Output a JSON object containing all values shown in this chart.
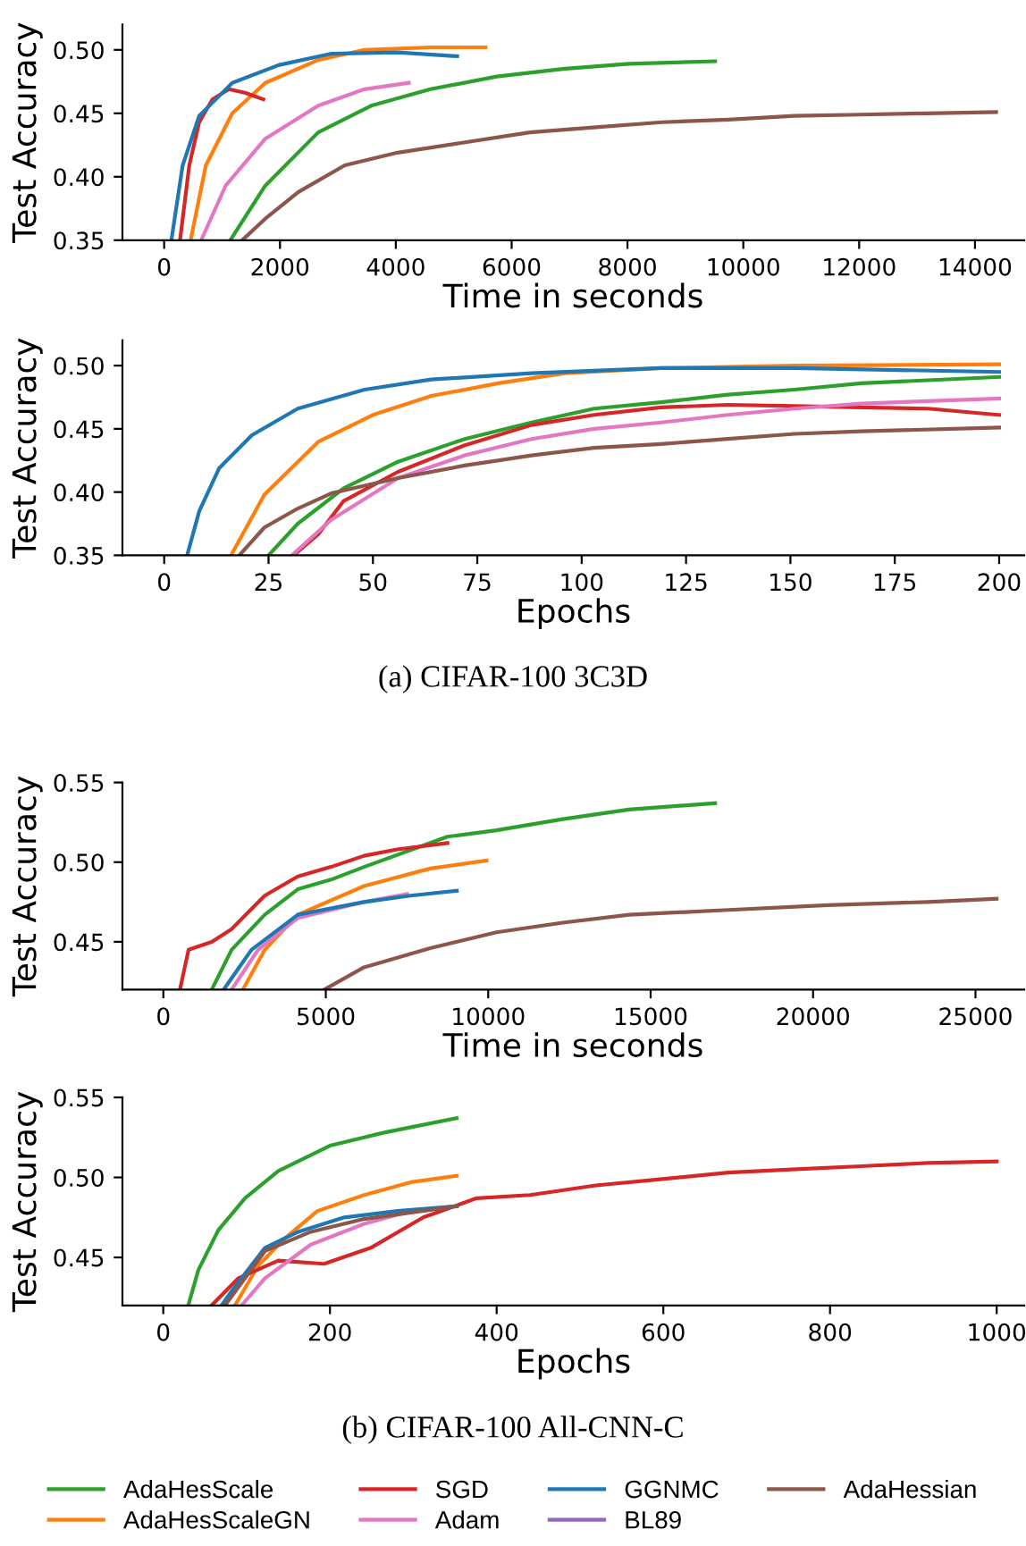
{
  "chart_data": [
    {
      "type": "line",
      "xlabel": "Time in seconds",
      "ylabel": "Test Accuracy",
      "xlim": [
        -720,
        14850
      ],
      "ylim": [
        0.35,
        0.52
      ],
      "xticks": [
        0,
        2000,
        4000,
        6000,
        8000,
        10000,
        12000,
        14000
      ],
      "yticks": [
        {
          "value": 0.35,
          "label": "0.35"
        },
        {
          "value": 0.4,
          "label": "0.40"
        },
        {
          "value": 0.45,
          "label": "0.45"
        },
        {
          "value": 0.5,
          "label": "0.50"
        }
      ],
      "grid": false,
      "series": [
        {
          "color": "#2ca02c",
          "x": [
            1142,
            1747,
            2660,
            3574,
            4600,
            5744,
            6886,
            8028,
            9513
          ],
          "values": [
            0.35,
            0.393,
            0.435,
            0.456,
            0.469,
            0.479,
            0.485,
            0.489,
            0.491
          ]
        },
        {
          "color": "#ff7f0e",
          "x": [
            457,
            720,
            1176,
            1747,
            2660,
            3460,
            4600,
            5550
          ],
          "values": [
            0.35,
            0.409,
            0.45,
            0.474,
            0.492,
            0.5,
            0.502,
            0.502
          ]
        },
        {
          "color": "#d62728",
          "x": [
            274,
            434,
            605,
            833,
            1119,
            1405,
            1713
          ],
          "values": [
            0.35,
            0.409,
            0.443,
            0.461,
            0.469,
            0.466,
            0.461
          ]
        },
        {
          "color": "#e377c2",
          "x": [
            640,
            1062,
            1747,
            2660,
            3460,
            4225
          ],
          "values": [
            0.35,
            0.393,
            0.43,
            0.456,
            0.469,
            0.474
          ]
        },
        {
          "color": "#1f77b4",
          "x": [
            125,
            320,
            605,
            1176,
            1976,
            2890,
            4030,
            5060
          ],
          "values": [
            0.35,
            0.409,
            0.448,
            0.474,
            0.488,
            0.497,
            0.498,
            0.495
          ]
        },
        {
          "color": "#8c564b",
          "x": [
            1348,
            1747,
            2318,
            3118,
            4031,
            5173,
            6315,
            7457,
            8600,
            9741,
            10883,
            12025,
            13167,
            14366
          ],
          "values": [
            0.35,
            0.367,
            0.388,
            0.409,
            0.419,
            0.427,
            0.435,
            0.439,
            0.443,
            0.445,
            0.448,
            0.449,
            0.45,
            0.451
          ]
        }
      ]
    },
    {
      "type": "line",
      "xlabel": "Epochs",
      "ylabel": "Test Accuracy",
      "xlim": [
        -10,
        206
      ],
      "ylim": [
        0.35,
        0.52
      ],
      "xticks": [
        0,
        25,
        50,
        75,
        100,
        125,
        150,
        175,
        200
      ],
      "yticks": [
        {
          "value": 0.35,
          "label": "0.35"
        },
        {
          "value": 0.4,
          "label": "0.40"
        },
        {
          "value": 0.45,
          "label": "0.45"
        },
        {
          "value": 0.5,
          "label": "0.50"
        }
      ],
      "grid": false,
      "annotations": [
        "(a) CIFAR-100 3C3D"
      ],
      "series": [
        {
          "color": "#2ca02c",
          "x": [
            25,
            32,
            43,
            56,
            72,
            88,
            103,
            119,
            135,
            151,
            167,
            200
          ],
          "values": [
            0.35,
            0.375,
            0.403,
            0.424,
            0.442,
            0.455,
            0.466,
            0.471,
            0.477,
            0.481,
            0.486,
            0.491
          ]
        },
        {
          "color": "#ff7f0e",
          "x": [
            16,
            24,
            37,
            50,
            64,
            80,
            96,
            119,
            151,
            200
          ],
          "values": [
            0.35,
            0.398,
            0.44,
            0.461,
            0.476,
            0.486,
            0.494,
            0.498,
            0.5,
            0.501
          ]
        },
        {
          "color": "#d62728",
          "x": [
            31,
            37,
            43,
            56,
            72,
            88,
            103,
            119,
            135,
            151,
            167,
            183,
            200
          ],
          "values": [
            0.35,
            0.367,
            0.393,
            0.416,
            0.437,
            0.453,
            0.461,
            0.467,
            0.469,
            0.468,
            0.467,
            0.466,
            0.461
          ]
        },
        {
          "color": "#e377c2",
          "x": [
            30.6,
            40,
            56,
            72,
            88,
            103,
            119,
            135,
            151,
            167,
            200
          ],
          "values": [
            0.35,
            0.378,
            0.411,
            0.429,
            0.442,
            0.45,
            0.455,
            0.461,
            0.466,
            0.47,
            0.474
          ]
        },
        {
          "color": "#1f77b4",
          "x": [
            5.5,
            8.4,
            13.2,
            21,
            32,
            48,
            64,
            88,
            119,
            151,
            200
          ],
          "values": [
            0.35,
            0.385,
            0.419,
            0.445,
            0.466,
            0.481,
            0.489,
            0.494,
            0.498,
            0.498,
            0.495
          ]
        },
        {
          "color": "#8c564b",
          "x": [
            18,
            24,
            32,
            40,
            56,
            72,
            88,
            103,
            119,
            135,
            151,
            167,
            200
          ],
          "values": [
            0.35,
            0.372,
            0.387,
            0.399,
            0.411,
            0.421,
            0.429,
            0.435,
            0.438,
            0.442,
            0.446,
            0.448,
            0.451
          ]
        }
      ]
    },
    {
      "type": "line",
      "xlabel": "Time in seconds",
      "ylabel": "Test Accuracy",
      "xlim": [
        -1260,
        26500
      ],
      "ylim": [
        0.42,
        0.55
      ],
      "xticks": [
        0,
        5000,
        10000,
        15000,
        20000,
        25000
      ],
      "yticks": [
        {
          "value": 0.45,
          "label": "0.45"
        },
        {
          "value": 0.5,
          "label": "0.50"
        },
        {
          "value": 0.55,
          "label": "0.55"
        }
      ],
      "grid": false,
      "series": [
        {
          "color": "#2ca02c",
          "x": [
            1489,
            2100,
            3120,
            4139,
            5159,
            6178,
            8747,
            10256,
            12295,
            14334,
            16985
          ],
          "values": [
            0.42,
            0.445,
            0.467,
            0.483,
            0.489,
            0.497,
            0.516,
            0.52,
            0.527,
            0.533,
            0.537
          ]
        },
        {
          "color": "#ff7f0e",
          "x": [
            2447,
            3120,
            4139,
            6178,
            8217,
            9950
          ],
          "values": [
            0.42,
            0.445,
            0.467,
            0.485,
            0.496,
            0.501
          ]
        },
        {
          "color": "#d62728",
          "x": [
            510,
            775,
            1489,
            2100,
            3120,
            4139,
            5159,
            6178,
            7198,
            8747
          ],
          "values": [
            0.42,
            0.445,
            0.45,
            0.458,
            0.479,
            0.491,
            0.497,
            0.504,
            0.508,
            0.512
          ]
        },
        {
          "color": "#e377c2",
          "x": [
            2100,
            2916,
            4139,
            6178,
            7504
          ],
          "values": [
            0.42,
            0.445,
            0.465,
            0.475,
            0.48
          ]
        },
        {
          "color": "#1f77b4",
          "x": [
            1855,
            2712,
            4139,
            6178,
            7606,
            9033
          ],
          "values": [
            0.42,
            0.445,
            0.467,
            0.475,
            0.479,
            0.482
          ]
        },
        {
          "color": "#8c564b",
          "x": [
            4955,
            6178,
            8217,
            10256,
            12295,
            14334,
            17393,
            20451,
            23510,
            25651
          ],
          "values": [
            0.42,
            0.434,
            0.446,
            0.456,
            0.462,
            0.467,
            0.47,
            0.473,
            0.475,
            0.477
          ]
        }
      ]
    },
    {
      "type": "line",
      "xlabel": "Epochs",
      "ylabel": "Test Accuracy",
      "xlim": [
        -49,
        1033
      ],
      "ylim": [
        0.42,
        0.55
      ],
      "xticks": [
        0,
        200,
        400,
        600,
        800,
        1000
      ],
      "yticks": [
        {
          "value": 0.45,
          "label": "0.45"
        },
        {
          "value": 0.5,
          "label": "0.50"
        },
        {
          "value": 0.55,
          "label": "0.55"
        }
      ],
      "grid": false,
      "legend": "bottom",
      "annotations": [
        "(b) CIFAR-100 All-CNN-C"
      ],
      "series": [
        {
          "name": "AdaHesScale",
          "color": "#2ca02c",
          "x": [
            30,
            42,
            66,
            98,
            138,
            201,
            265,
            352
          ],
          "values": [
            0.42,
            0.442,
            0.467,
            0.487,
            0.504,
            0.52,
            0.528,
            0.537
          ]
        },
        {
          "name": "AdaHesScaleGN",
          "color": "#ff7f0e",
          "x": [
            86,
            114,
            146,
            185,
            241,
            297,
            352
          ],
          "values": [
            0.42,
            0.445,
            0.462,
            0.479,
            0.489,
            0.497,
            0.501
          ]
        },
        {
          "name": "SGD",
          "color": "#d62728",
          "x": [
            58,
            90,
            138,
            193,
            249,
            312,
            376,
            440,
            519,
            599,
            678,
            754,
            837,
            917,
            1000
          ],
          "values": [
            0.42,
            0.437,
            0.448,
            0.446,
            0.456,
            0.475,
            0.487,
            0.489,
            0.495,
            0.499,
            0.503,
            0.505,
            0.507,
            0.509,
            0.51
          ]
        },
        {
          "name": "Adam",
          "color": "#e377c2",
          "x": [
            94,
            122,
            177,
            241,
            297,
            352
          ],
          "values": [
            0.42,
            0.437,
            0.458,
            0.471,
            0.479,
            0.482
          ]
        },
        {
          "name": "GGNMC",
          "color": "#1f77b4",
          "x": [
            70,
            82,
            122,
            162,
            217,
            281,
            352
          ],
          "values": [
            0.42,
            0.429,
            0.456,
            0.466,
            0.475,
            0.479,
            0.482
          ]
        },
        {
          "name": "BL89",
          "color": "#9467bd"
        },
        {
          "name": "AdaHessian",
          "color": "#8c564b",
          "x": [
            74,
            122,
            177,
            241,
            297,
            352
          ],
          "values": [
            0.42,
            0.454,
            0.466,
            0.474,
            0.478,
            0.482
          ]
        }
      ]
    }
  ]
}
